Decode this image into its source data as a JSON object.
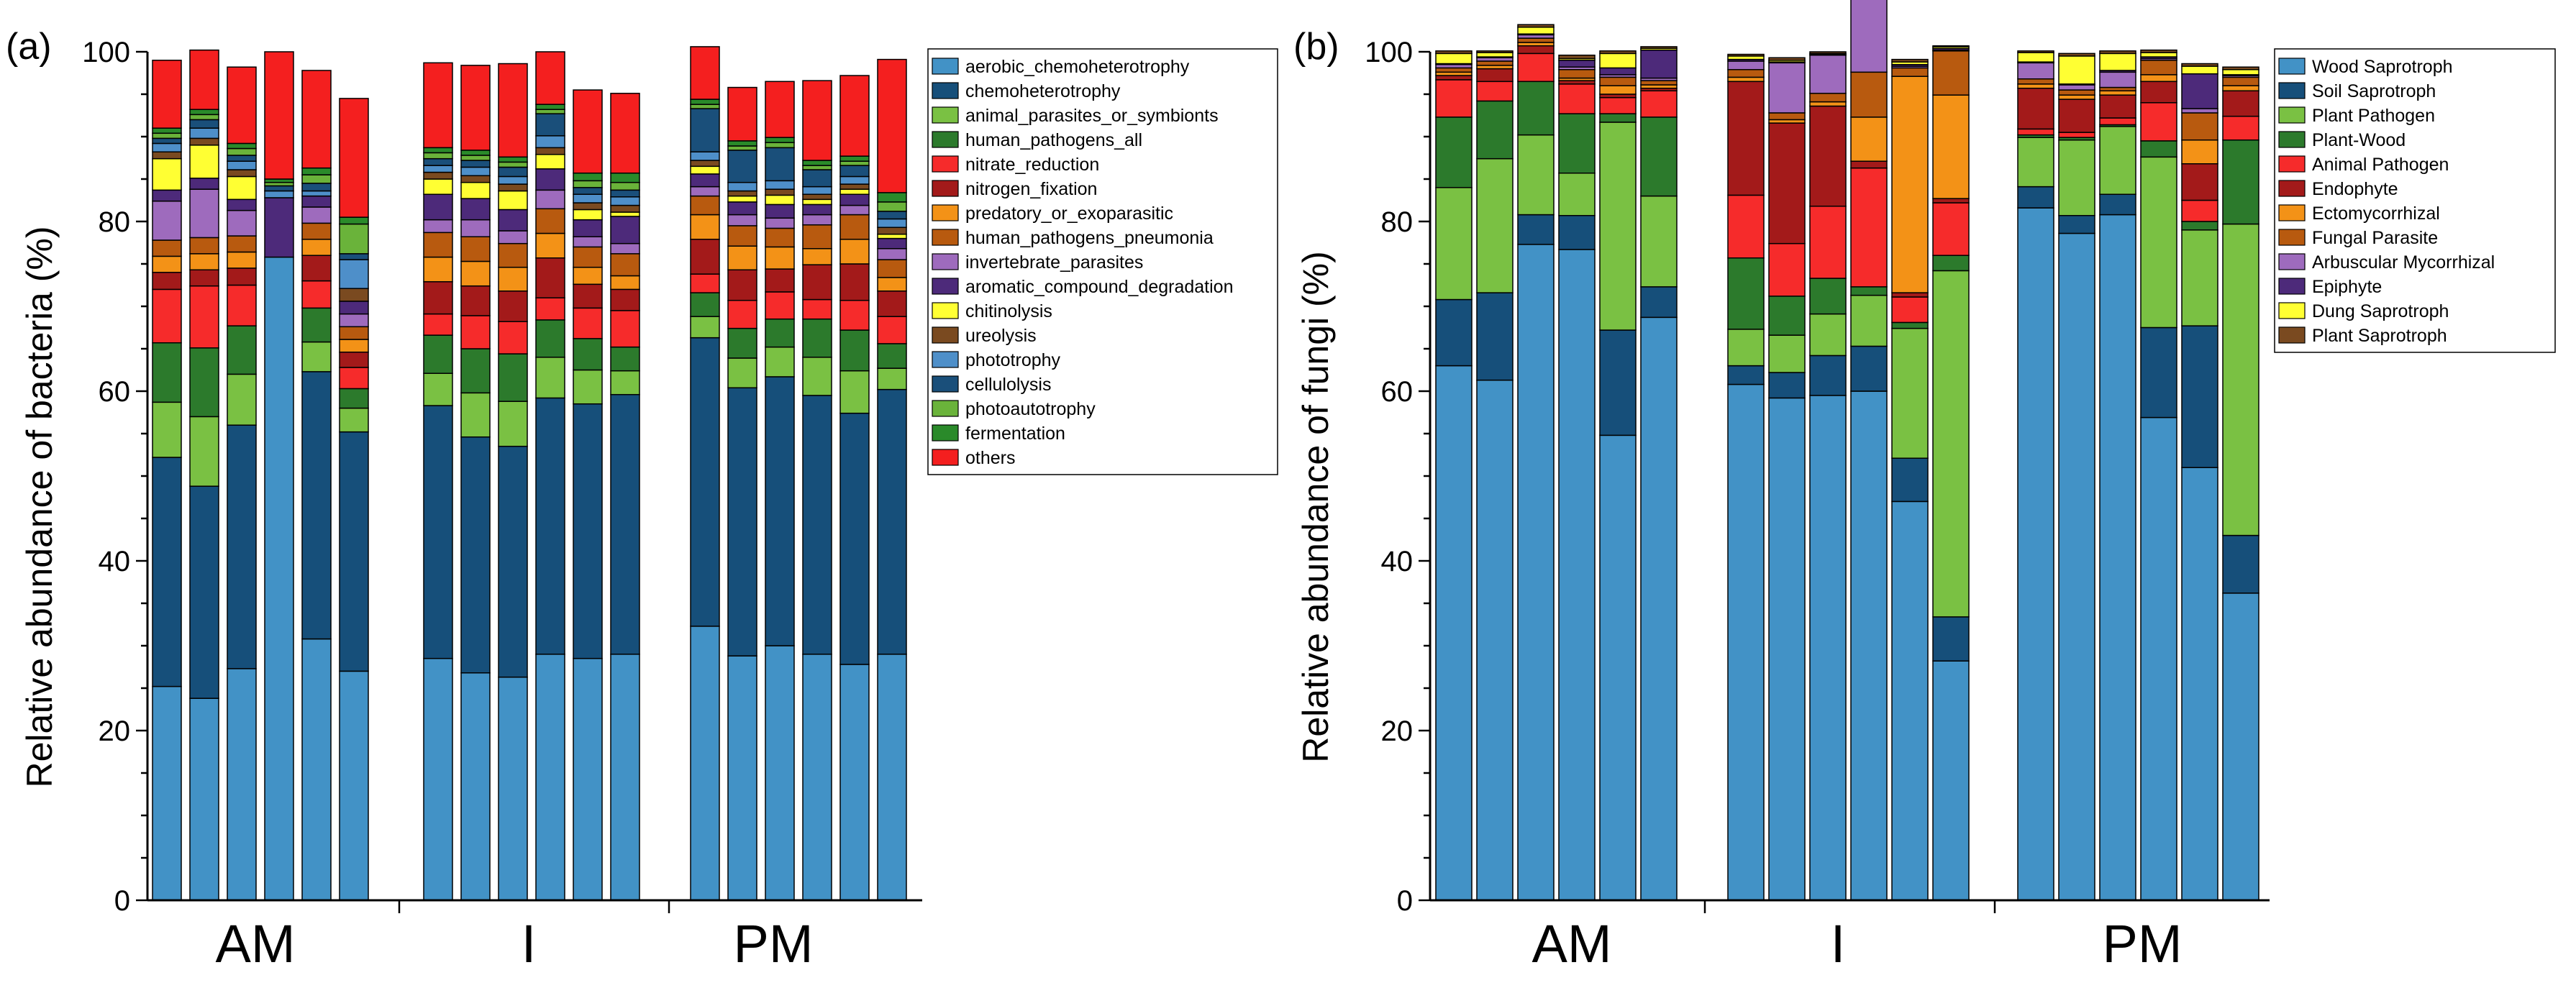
{
  "chart_data": [
    {
      "type": "bar",
      "stacked": true,
      "panel_label": "(a)",
      "ylabel": "Relative abundance of bacteria (%)",
      "xlabel": "",
      "ylim": [
        0,
        100
      ],
      "yticks": [
        0,
        20,
        40,
        60,
        80,
        100
      ],
      "groups": [
        "AM",
        "I",
        "PM"
      ],
      "bars_per_group": 6,
      "legend": {
        "placement": "right"
      },
      "series": [
        {
          "name": "aerobic_chemoheterotrophy",
          "color": "#4292c6",
          "values": [
            25.2,
            23.8,
            27.3,
            75.8,
            30.8,
            27.0,
            28.5,
            26.8,
            26.3,
            29.0,
            28.5,
            29.0,
            32.3,
            28.8,
            30.0,
            29.0,
            27.8,
            29.0
          ]
        },
        {
          "name": "chemoheterotrophy",
          "color": "#164f7a",
          "values": [
            27.0,
            25.0,
            28.7,
            0,
            31.5,
            28.2,
            29.8,
            27.8,
            27.2,
            30.2,
            30.0,
            30.6,
            34.0,
            31.6,
            31.7,
            30.5,
            29.6,
            31.2
          ]
        },
        {
          "name": "animal_parasites_or_symbionts",
          "color": "#7ac143",
          "values": [
            6.5,
            8.2,
            6.0,
            0,
            3.5,
            2.8,
            3.8,
            5.2,
            5.3,
            4.8,
            4.0,
            2.8,
            2.5,
            3.5,
            3.5,
            4.5,
            5.0,
            2.5
          ]
        },
        {
          "name": "human_pathogens_all",
          "color": "#2c7a2c",
          "values": [
            7.0,
            8.1,
            5.7,
            0,
            4.0,
            2.3,
            4.5,
            5.2,
            5.6,
            4.4,
            3.7,
            2.8,
            2.8,
            3.5,
            3.3,
            4.5,
            4.8,
            2.9
          ]
        },
        {
          "name": "nitrate_reduction",
          "color": "#f62b2b",
          "values": [
            6.3,
            7.3,
            4.8,
            0,
            3.2,
            2.5,
            2.5,
            3.9,
            3.8,
            2.6,
            3.6,
            4.3,
            2.2,
            3.3,
            3.2,
            2.3,
            3.5,
            3.2
          ]
        },
        {
          "name": "nitrogen_fixation",
          "color": "#a31a1a",
          "values": [
            2.0,
            1.9,
            2.0,
            0,
            3.0,
            1.8,
            3.8,
            3.5,
            3.6,
            4.7,
            2.8,
            2.5,
            4.1,
            3.6,
            2.7,
            4.1,
            4.3,
            3.0
          ]
        },
        {
          "name": "predatory_or_exoparasitic",
          "color": "#f39217",
          "values": [
            1.9,
            1.9,
            1.9,
            0,
            1.9,
            1.5,
            2.9,
            2.9,
            2.8,
            2.9,
            2.0,
            1.6,
            2.9,
            2.8,
            2.6,
            1.9,
            2.9,
            1.6
          ]
        },
        {
          "name": "human_pathogens_pneumonia",
          "color": "#b85a0f",
          "values": [
            1.9,
            1.9,
            1.9,
            0,
            1.9,
            1.5,
            2.9,
            2.9,
            2.8,
            2.9,
            2.4,
            2.6,
            2.2,
            2.4,
            2.2,
            2.8,
            2.9,
            2.1
          ]
        },
        {
          "name": "invertebrate_parasites",
          "color": "#9e6bbd",
          "values": [
            4.6,
            5.7,
            3.0,
            0,
            1.9,
            1.5,
            1.5,
            2.0,
            1.5,
            2.2,
            1.2,
            1.2,
            1.1,
            1.3,
            1.2,
            1.2,
            1.1,
            1.3
          ]
        },
        {
          "name": "aromatic_compound_degradation",
          "color": "#4d2a7a",
          "values": [
            1.3,
            1.3,
            1.3,
            7.0,
            1.3,
            1.5,
            3.0,
            2.5,
            2.5,
            2.5,
            2.0,
            3.2,
            1.5,
            1.5,
            1.6,
            1.2,
            1.3,
            1.2
          ]
        },
        {
          "name": "chitinolysis",
          "color": "#ffff33",
          "values": [
            3.7,
            3.9,
            2.7,
            0,
            0,
            0,
            1.8,
            1.9,
            2.2,
            1.7,
            1.2,
            0.5,
            0.9,
            0.7,
            1.1,
            0.6,
            0.6,
            0.5
          ]
        },
        {
          "name": "ureolysis",
          "color": "#7a4a20",
          "values": [
            0.8,
            0.8,
            0.8,
            0,
            0,
            1.5,
            0.8,
            0.8,
            0.8,
            0.8,
            0.8,
            0.8,
            0.7,
            0.6,
            0.7,
            0.6,
            0.6,
            0.8
          ]
        },
        {
          "name": "phototrophy",
          "color": "#4e8fc9",
          "values": [
            1.0,
            1.2,
            1.0,
            0.8,
            0.6,
            3.4,
            0.8,
            1.0,
            0.9,
            1.4,
            1.0,
            1.0,
            1.0,
            1.0,
            1.0,
            0.9,
            0.9,
            1.0
          ]
        },
        {
          "name": "cellulolysis",
          "color": "#1a4f7a",
          "values": [
            0.6,
            1.0,
            0.7,
            0.6,
            0.9,
            0.7,
            0.8,
            0.8,
            1.1,
            2.6,
            0.8,
            0.8,
            5.1,
            3.8,
            3.9,
            2.0,
            1.3,
            0.9
          ]
        },
        {
          "name": "photoautotrophy",
          "color": "#6ab33a",
          "values": [
            0.6,
            0.6,
            0.8,
            0.4,
            1.0,
            3.5,
            0.7,
            0.6,
            0.6,
            0.5,
            0.8,
            0.9,
            0.5,
            0.5,
            0.6,
            0.5,
            0.5,
            1.1
          ]
        },
        {
          "name": "fermentation",
          "color": "#2a8a2a",
          "values": [
            0.6,
            0.6,
            0.6,
            0.4,
            0.8,
            0.8,
            0.6,
            0.6,
            0.6,
            0.6,
            0.9,
            1.1,
            0.6,
            0.6,
            0.6,
            0.6,
            0.6,
            1.1
          ]
        },
        {
          "name": "others",
          "color": "#f41f1f",
          "values": [
            8.0,
            7.0,
            9.0,
            15.0,
            11.5,
            14.0,
            10.0,
            10.0,
            11.0,
            6.2,
            9.8,
            9.4,
            6.2,
            6.3,
            6.6,
            9.4,
            9.5,
            15.7
          ]
        }
      ]
    },
    {
      "type": "bar",
      "stacked": true,
      "panel_label": "(b)",
      "ylabel": "Relative abundance of fungi (%)",
      "xlabel": "",
      "ylim": [
        0,
        100
      ],
      "yticks": [
        0,
        20,
        40,
        60,
        80,
        100
      ],
      "groups": [
        "AM",
        "I",
        "PM"
      ],
      "bars_per_group": 6,
      "legend": {
        "placement": "right"
      },
      "series": [
        {
          "name": "Wood Saprotroph",
          "color": "#4292c6",
          "values": [
            63.0,
            61.3,
            77.3,
            76.7,
            54.8,
            68.7,
            60.8,
            59.2,
            59.5,
            60.0,
            47.0,
            28.2,
            81.6,
            78.6,
            80.8,
            56.9,
            51.0,
            36.2
          ]
        },
        {
          "name": "Soil Saprotroph",
          "color": "#164f7a",
          "values": [
            7.8,
            10.3,
            3.5,
            4.0,
            12.4,
            3.6,
            2.2,
            3.0,
            4.7,
            5.3,
            5.1,
            5.2,
            2.5,
            2.1,
            2.4,
            10.6,
            16.7,
            6.8
          ]
        },
        {
          "name": "Plant Pathogen",
          "color": "#7ac143",
          "values": [
            13.2,
            15.8,
            9.4,
            5.0,
            24.5,
            10.7,
            4.3,
            4.4,
            4.9,
            6.0,
            15.3,
            40.8,
            5.8,
            8.9,
            8.0,
            20.1,
            11.3,
            36.7
          ]
        },
        {
          "name": "Plant-Wood",
          "color": "#2c7a2c",
          "values": [
            8.3,
            6.8,
            6.3,
            7.0,
            1.0,
            9.3,
            8.4,
            4.6,
            4.2,
            1.0,
            0.7,
            1.8,
            0.3,
            0.3,
            0.2,
            1.9,
            1.0,
            9.9
          ]
        },
        {
          "name": "Animal Pathogen",
          "color": "#f62b2b",
          "values": [
            4.4,
            2.3,
            3.3,
            3.5,
            1.9,
            3.1,
            7.4,
            6.2,
            8.5,
            14.0,
            3.0,
            6.2,
            0.7,
            0.6,
            0.8,
            4.5,
            2.5,
            2.8
          ]
        },
        {
          "name": "Endophyte",
          "color": "#a31a1a",
          "values": [
            0.5,
            1.5,
            0.9,
            0.4,
            0.4,
            0.3,
            13.4,
            14.2,
            11.8,
            0.8,
            0.5,
            0.5,
            4.8,
            3.9,
            2.7,
            2.5,
            4.3,
            3.0
          ]
        },
        {
          "name": "Ectomycorrhizal",
          "color": "#f39217",
          "values": [
            0.4,
            0.4,
            0.4,
            0.3,
            1.0,
            0.4,
            0.5,
            0.4,
            0.5,
            5.2,
            25.5,
            12.2,
            0.5,
            0.5,
            0.5,
            0.8,
            2.8,
            0.6
          ]
        },
        {
          "name": "Fungal Parasite",
          "color": "#b85a0f",
          "values": [
            0.5,
            0.5,
            0.5,
            1.0,
            1.0,
            0.5,
            0.9,
            0.8,
            1.0,
            5.3,
            1.0,
            5.2,
            0.6,
            0.6,
            0.4,
            1.7,
            3.2,
            1.0
          ]
        },
        {
          "name": "Arbuscular Mycorrhizal",
          "color": "#9e6bbd",
          "values": [
            0.4,
            0.4,
            0.4,
            0.3,
            0.3,
            0.3,
            1.0,
            5.9,
            4.5,
            9.2,
            0.2,
            0.1,
            1.9,
            0.6,
            1.8,
            0.2,
            0.5,
            0.2
          ]
        },
        {
          "name": "Epiphyte",
          "color": "#4d2a7a",
          "values": [
            0.1,
            0.1,
            0.1,
            0.8,
            0.8,
            3.3,
            0.2,
            0.1,
            0.1,
            0.2,
            0.2,
            0.2,
            0.1,
            0.1,
            0.2,
            0.2,
            4.1,
            0.1
          ]
        },
        {
          "name": "Dung Saprotroph",
          "color": "#ffff33",
          "values": [
            1.2,
            0.5,
            0.8,
            0.2,
            1.7,
            0.2,
            0.4,
            0.2,
            0.1,
            0.2,
            0.3,
            0.2,
            1.1,
            3.3,
            2.0,
            0.5,
            0.9,
            0.6
          ]
        },
        {
          "name": "Plant Saprotroph",
          "color": "#7a4a20",
          "values": [
            0.3,
            0.2,
            0.3,
            0.4,
            0.3,
            0.2,
            0.2,
            0.3,
            0.2,
            0.3,
            0.3,
            0.1,
            0.2,
            0.3,
            0.3,
            0.3,
            0.3,
            0.3
          ]
        }
      ]
    }
  ]
}
